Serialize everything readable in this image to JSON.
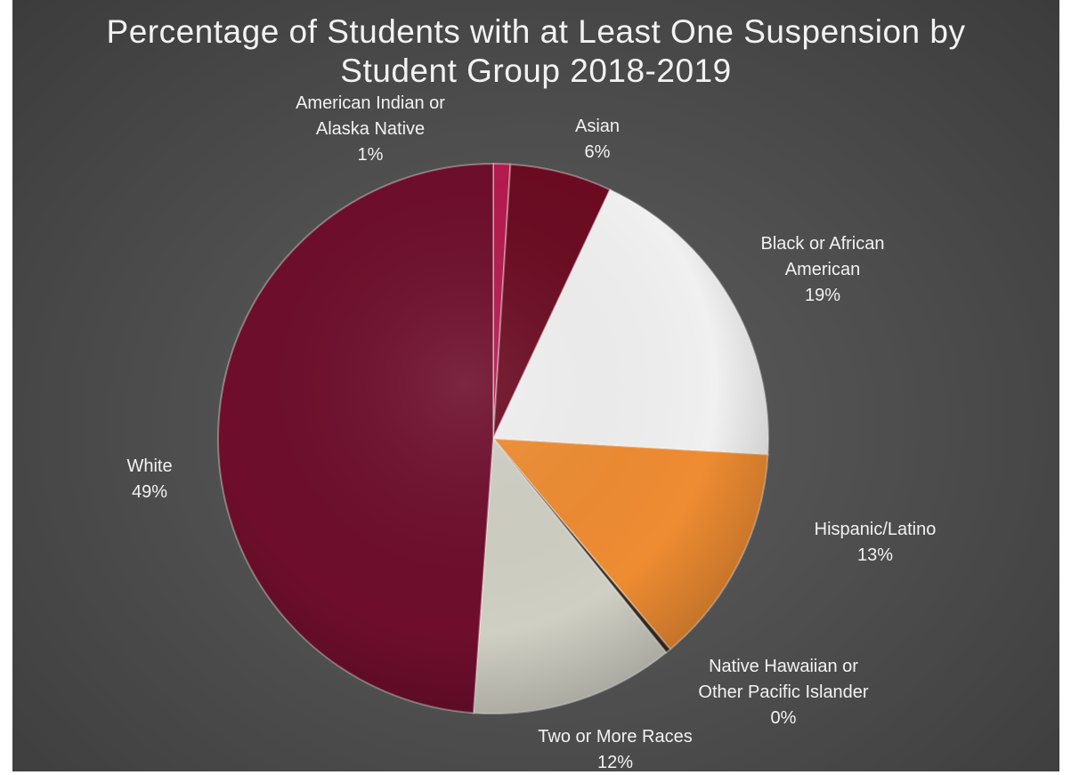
{
  "chart_data": {
    "type": "pie",
    "title_lines": [
      "Percentage of Students with at Least One Suspension by",
      "Student Group 2018-2019"
    ],
    "slices": [
      {
        "label_lines": [
          "American Indian or",
          "Alaska Native"
        ],
        "value_label": "1%",
        "value": 1,
        "color": "#b51a4f"
      },
      {
        "label_lines": [
          "Asian"
        ],
        "value_label": "6%",
        "value": 6,
        "color": "#6b0b22"
      },
      {
        "label_lines": [
          "Black or African",
          "American"
        ],
        "value_label": "19%",
        "value": 19,
        "color": "#f0f0f0"
      },
      {
        "label_lines": [
          "Hispanic/Latino"
        ],
        "value_label": "13%",
        "value": 13,
        "color": "#ee8c32"
      },
      {
        "label_lines": [
          "Native Hawaiian or",
          "Other Pacific Islander"
        ],
        "value_label": "0%",
        "value": 0.3,
        "color": "#3a2a1a"
      },
      {
        "label_lines": [
          "Two or More Races"
        ],
        "value_label": "12%",
        "value": 12,
        "color": "#cfcfc4"
      },
      {
        "label_lines": [
          "White"
        ],
        "value_label": "49%",
        "value": 49,
        "color": "#6e0e2c"
      }
    ],
    "legend": "none"
  }
}
